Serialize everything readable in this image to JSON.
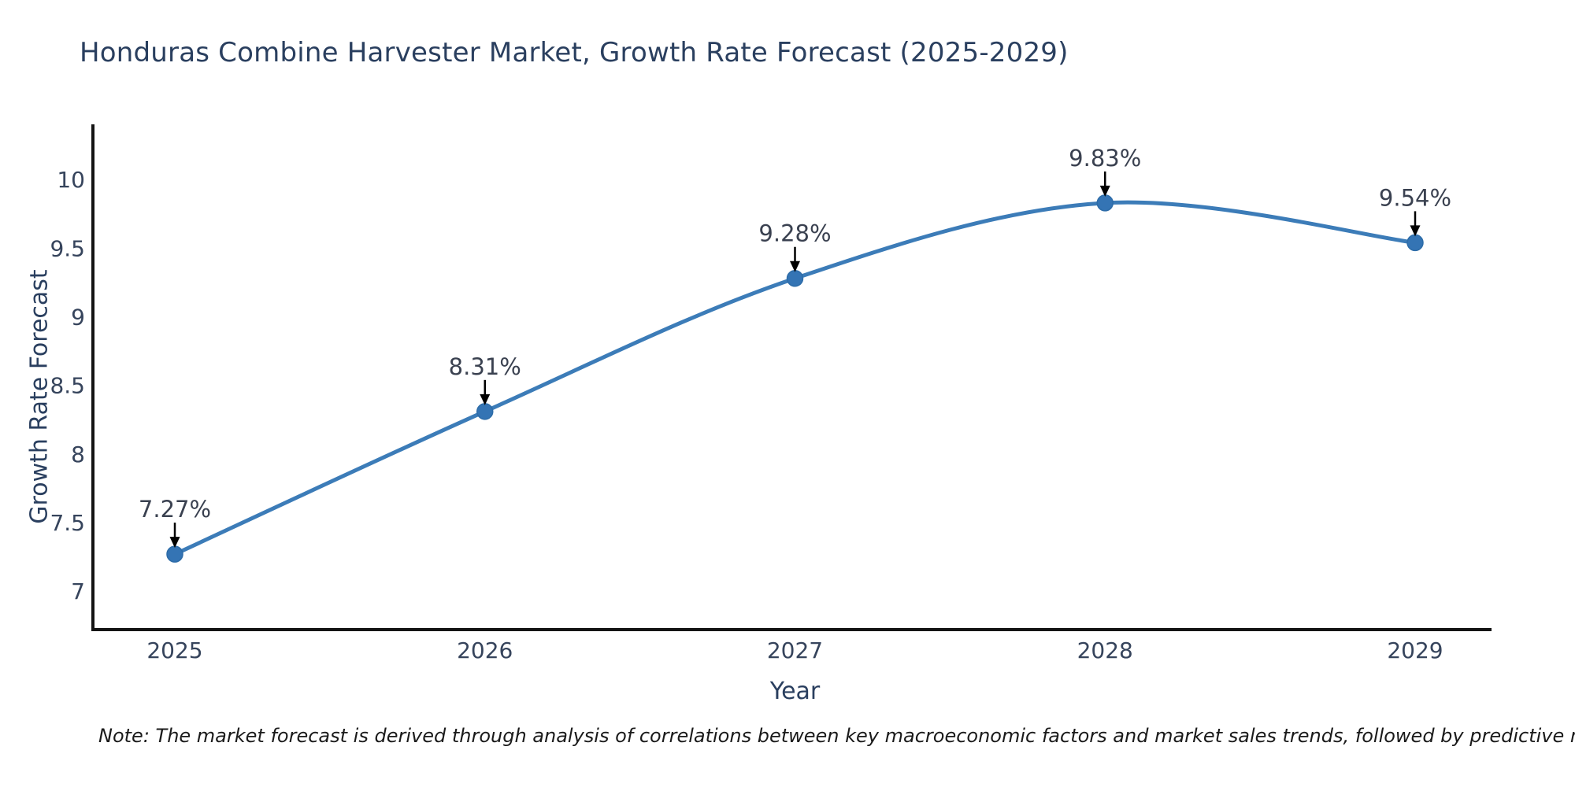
{
  "chart_data": {
    "type": "line",
    "title": "Honduras Combine Harvester Market, Growth Rate Forecast (2025-2029)",
    "xlabel": "Year",
    "ylabel": "Growth Rate Forecast",
    "categories": [
      "2025",
      "2026",
      "2027",
      "2028",
      "2029"
    ],
    "series": [
      {
        "name": "Growth Rate Forecast",
        "values": [
          7.27,
          8.31,
          9.28,
          9.83,
          9.54
        ]
      }
    ],
    "point_labels": [
      "7.27%",
      "8.31%",
      "9.28%",
      "9.83%",
      "9.54%"
    ],
    "yticks": [
      7,
      7.5,
      8,
      8.5,
      9,
      9.5,
      10
    ],
    "ylim": [
      6.72,
      10.42
    ],
    "grid": false,
    "legend_position": "none",
    "line_shape": "spline",
    "colors": {
      "line": "#3c7cb8",
      "marker": "#3474b4",
      "marker_edge": "#2d6ca8",
      "axis": "#141414",
      "title_text": "#2a3f5f",
      "tick_text": "#36445c",
      "annotation_text": "#3a4150",
      "arrow": "#000000"
    }
  },
  "note": {
    "text": "Note: The market forecast is derived through analysis of correlations between key macroeconomic factors and market sales trends, followed by predictive modeling to project future sales"
  }
}
